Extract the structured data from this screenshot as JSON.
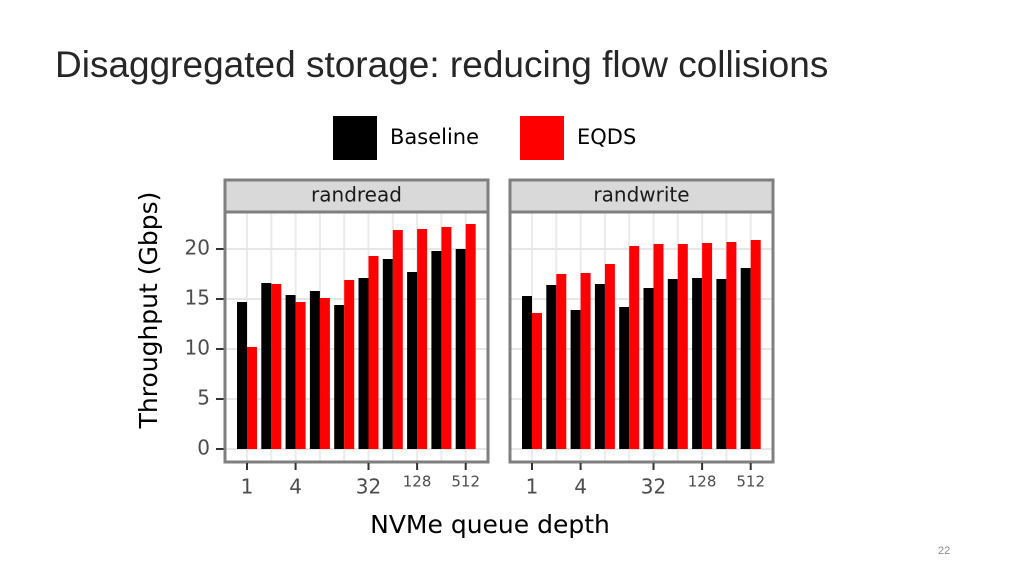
{
  "title": "Disaggregated storage: reducing flow collisions",
  "page_number": "22",
  "chart_data": {
    "type": "bar",
    "y_label": "Throughput (Gbps)",
    "x_label": "NVMe queue depth",
    "facets": [
      "randread",
      "randwrite"
    ],
    "categories": [
      "1",
      null,
      "4",
      null,
      null,
      "32",
      null,
      "128",
      null,
      "512"
    ],
    "ylim": [
      -1.3,
      23.7
    ],
    "yticks": [
      0,
      5,
      10,
      15,
      20
    ],
    "grid": true,
    "series": [
      {
        "name": "Baseline",
        "color": "#000000",
        "values": [
          [
            14.7,
            16.6,
            15.4,
            15.8,
            14.4,
            17.1,
            19.0,
            17.7,
            19.8,
            20.0
          ],
          [
            15.3,
            16.4,
            13.9,
            16.5,
            14.2,
            16.1,
            17.0,
            17.1,
            17.0,
            18.1
          ]
        ]
      },
      {
        "name": "EQDS",
        "color": "#ff0000",
        "values": [
          [
            10.2,
            16.5,
            14.7,
            15.1,
            16.9,
            19.3,
            21.9,
            22.0,
            22.2,
            22.5
          ],
          [
            13.6,
            17.5,
            17.6,
            18.5,
            20.3,
            20.5,
            20.5,
            20.6,
            20.7,
            20.9
          ]
        ]
      }
    ]
  }
}
